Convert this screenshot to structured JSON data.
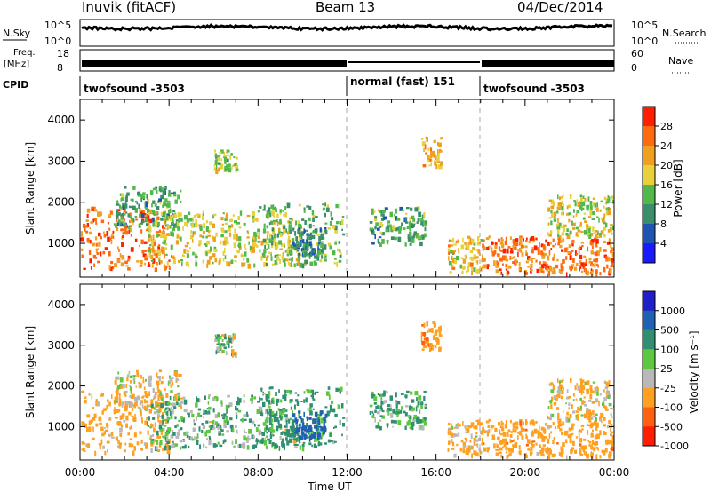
{
  "header": {
    "station": "Inuvik (fitACF)",
    "beam": "Beam 13",
    "date": "04/Dec/2014"
  },
  "noise_panel": {
    "left_label": "N.Sky",
    "right_label": "N.Search",
    "left_ticks": [
      "10^5",
      "10^0"
    ],
    "right_ticks": [
      "10^5",
      "10^0"
    ]
  },
  "freq_panel": {
    "left_label_1": "Freq.",
    "left_label_2": "[MHz]",
    "right_label": "Nave",
    "left_ticks": [
      "18",
      "8"
    ],
    "right_ticks": [
      "60",
      "0"
    ]
  },
  "cpid": {
    "label": "CPID",
    "segments": [
      {
        "text": "twofsound -3503",
        "start_hour": 0,
        "end_hour": 12
      },
      {
        "text": "normal (fast) 151",
        "start_hour": 12,
        "end_hour": 18
      },
      {
        "text": "twofsound -3503",
        "start_hour": 18,
        "end_hour": 24
      }
    ]
  },
  "x_axis": {
    "label": "Time UT",
    "ticks": [
      "00:00",
      "04:00",
      "08:00",
      "12:00",
      "16:00",
      "20:00",
      "00:00"
    ]
  },
  "power_panel": {
    "ylabel": "Slant Range [km]",
    "yticks": [
      "1000",
      "2000",
      "3000",
      "4000"
    ],
    "colorbar_label": "Power [dB]",
    "colorbar_ticks": [
      "4",
      "8",
      "12",
      "16",
      "20",
      "24",
      "28"
    ],
    "colors": [
      "#1a1aff",
      "#1f55b0",
      "#3a8f6a",
      "#52b84a",
      "#e8d03a",
      "#f0a020",
      "#ff6a10",
      "#ff1e00"
    ]
  },
  "velocity_panel": {
    "ylabel": "Slant Range [km]",
    "yticks": [
      "1000",
      "2000",
      "3000",
      "4000"
    ],
    "colorbar_label": "Velocity [m s⁻¹]",
    "colorbar_ticks": [
      "1000",
      "500",
      "100",
      "25",
      "-25",
      "-100",
      "-500",
      "-1000"
    ],
    "colors": [
      "#2020c8",
      "#2060b0",
      "#2f8f70",
      "#5cc840",
      "#b8b8b8",
      "#ffa020",
      "#ff6010",
      "#ff1e00"
    ]
  },
  "chart_data": {
    "type": "heatmap",
    "title": "Beam 13",
    "xlabel": "Time UT",
    "ylabel": "Slant Range [km]",
    "xlim_hours": [
      0,
      24
    ],
    "ylim_km": [
      180,
      4500
    ],
    "grid": false,
    "mode_boundaries_hours": [
      12,
      18
    ],
    "echo_regions": [
      {
        "t_start": 0.0,
        "t_end": 4.0,
        "r_min": 400,
        "r_max": 1900,
        "power_db": 26,
        "velocity": -150
      },
      {
        "t_start": 1.5,
        "t_end": 4.5,
        "r_min": 1400,
        "r_max": 2400,
        "power_db": 12,
        "velocity": -80
      },
      {
        "t_start": 3.0,
        "t_end": 9.8,
        "r_min": 500,
        "r_max": 1800,
        "power_db": 18,
        "velocity": 60
      },
      {
        "t_start": 6.0,
        "t_end": 7.0,
        "r_min": 2800,
        "r_max": 3300,
        "power_db": 16,
        "velocity": 10
      },
      {
        "t_start": 8.0,
        "t_end": 11.8,
        "r_min": 500,
        "r_max": 2000,
        "power_db": 14,
        "velocity": 120
      },
      {
        "t_start": 9.5,
        "t_end": 11.0,
        "r_min": 700,
        "r_max": 1400,
        "power_db": 10,
        "velocity": 400
      },
      {
        "t_start": 13.0,
        "t_end": 15.5,
        "r_min": 1000,
        "r_max": 1900,
        "power_db": 12,
        "velocity": 80
      },
      {
        "t_start": 15.3,
        "t_end": 16.2,
        "r_min": 2900,
        "r_max": 3600,
        "power_db": 22,
        "velocity": -200
      },
      {
        "t_start": 16.5,
        "t_end": 18.0,
        "r_min": 300,
        "r_max": 1200,
        "power_db": 20,
        "velocity": -120
      },
      {
        "t_start": 18.0,
        "t_end": 24.0,
        "r_min": 300,
        "r_max": 1200,
        "power_db": 25,
        "velocity": -180
      },
      {
        "t_start": 21.0,
        "t_end": 24.0,
        "r_min": 1200,
        "r_max": 2200,
        "power_db": 18,
        "velocity": -90
      }
    ]
  }
}
